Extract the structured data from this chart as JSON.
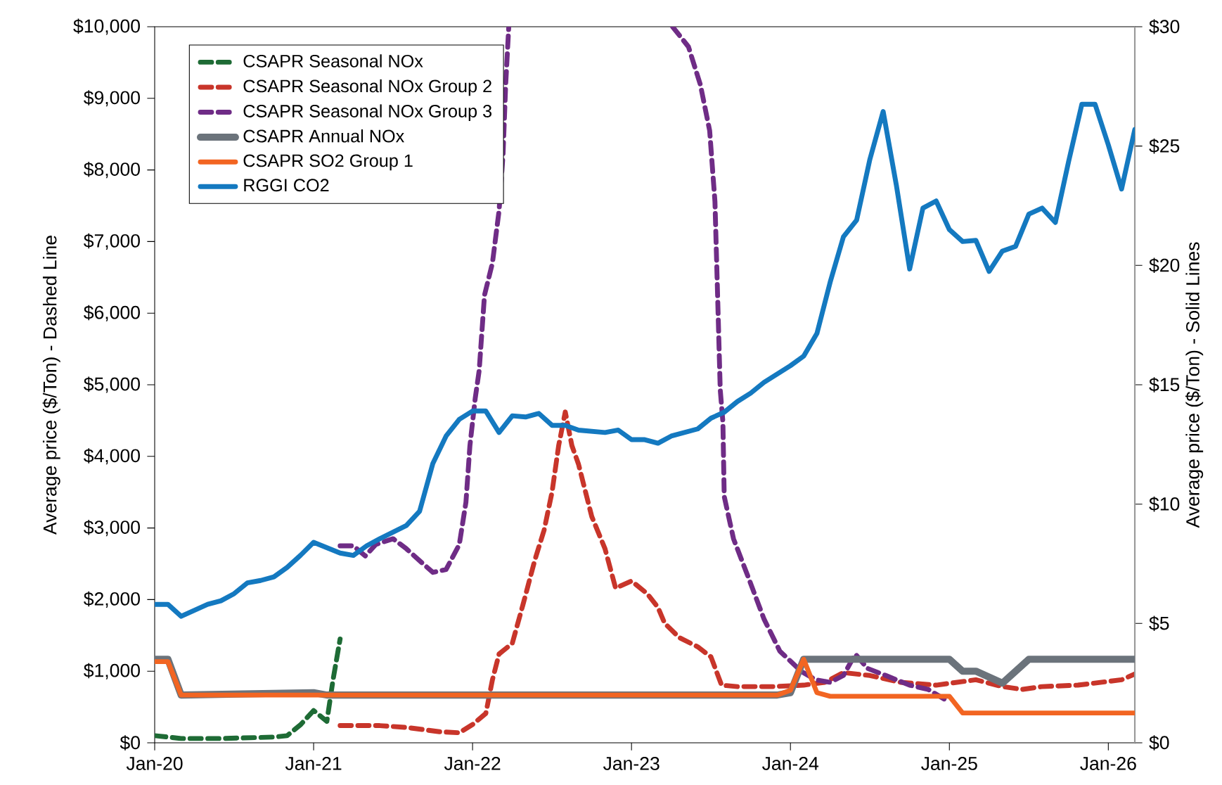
{
  "chart_data": {
    "type": "line",
    "ylabel": "Average price ($/Ton) - Dashed Line",
    "y2label": "Average price ($/Ton) - Solid Lines",
    "xlim": [
      "2020-01",
      "2026-03"
    ],
    "xticks": [
      {
        "value": "2020-01",
        "label": "Jan-20"
      },
      {
        "value": "2021-01",
        "label": "Jan-21"
      },
      {
        "value": "2022-01",
        "label": "Jan-22"
      },
      {
        "value": "2023-01",
        "label": "Jan-23"
      },
      {
        "value": "2024-01",
        "label": "Jan-24"
      },
      {
        "value": "2025-01",
        "label": "Jan-25"
      },
      {
        "value": "2026-01",
        "label": "Jan-26"
      }
    ],
    "ylim": [
      0,
      10000
    ],
    "yticks": [
      {
        "value": 0,
        "label": "$0"
      },
      {
        "value": 1000,
        "label": "$1,000"
      },
      {
        "value": 2000,
        "label": "$2,000"
      },
      {
        "value": 3000,
        "label": "$3,000"
      },
      {
        "value": 4000,
        "label": "$4,000"
      },
      {
        "value": 5000,
        "label": "$5,000"
      },
      {
        "value": 6000,
        "label": "$6,000"
      },
      {
        "value": 7000,
        "label": "$7,000"
      },
      {
        "value": 8000,
        "label": "$8,000"
      },
      {
        "value": 9000,
        "label": "$9,000"
      },
      {
        "value": 10000,
        "label": "$10,000"
      }
    ],
    "y2lim": [
      0,
      30
    ],
    "y2ticks": [
      {
        "value": 0,
        "label": "$0"
      },
      {
        "value": 5,
        "label": "$5"
      },
      {
        "value": 10,
        "label": "$10"
      },
      {
        "value": 15,
        "label": "$15"
      },
      {
        "value": 20,
        "label": "$20"
      },
      {
        "value": 25,
        "label": "$25"
      },
      {
        "value": 30,
        "label": "$30"
      }
    ],
    "legend": "top left",
    "series": [
      {
        "name": "CSAPR Seasonal NOx",
        "color": "#1e6b35",
        "line_style": "dashed",
        "x": [
          "2020-01",
          "2020-03",
          "2020-06",
          "2020-10",
          "2020-11",
          "2020-12",
          "2021-01",
          "2021-02",
          "2021-02-15",
          "2021-03"
        ],
        "values": [
          100,
          60,
          60,
          80,
          100,
          250,
          450,
          300,
          880,
          1450
        ]
      },
      {
        "name": "CSAPR Seasonal NOx Group 2",
        "color": "#c8352a",
        "line_style": "dashed",
        "x": [
          "2021-03",
          "2021-06",
          "2021-08",
          "2021-10-16",
          "2021-12",
          "2022-01",
          "2022-02",
          "2022-02-16",
          "2022-03",
          "2022-04",
          "2022-04-25",
          "2022-05-22",
          "2022-06-13",
          "2022-07",
          "2022-07-16",
          "2022-08",
          "2022-08-16",
          "2022-09",
          "2022-10",
          "2022-11",
          "2022-11-25",
          "2023-01",
          "2023-02-07",
          "2023-03",
          "2023-03-16",
          "2023-04-19",
          "2023-06",
          "2023-07",
          "2023-07-25",
          "2023-09",
          "2023-11-22",
          "2024-02",
          "2024-03-19",
          "2024-05",
          "2024-07",
          "2024-09-10",
          "2024-12",
          "2025-03",
          "2025-05",
          "2025-06-16",
          "2025-08",
          "2025-10-22",
          "2026-02",
          "2026-03"
        ],
        "values": [
          240,
          240,
          215,
          155,
          140,
          255,
          410,
          880,
          1240,
          1390,
          1925,
          2550,
          2970,
          3500,
          4150,
          4620,
          4150,
          3890,
          3160,
          2710,
          2160,
          2260,
          2080,
          1890,
          1670,
          1470,
          1340,
          1200,
          805,
          785,
          785,
          805,
          845,
          980,
          940,
          845,
          805,
          880,
          785,
          745,
          785,
          805,
          880,
          960
        ]
      },
      {
        "name": "CSAPR Seasonal NOx Group 3",
        "color": "#6f2c86",
        "line_style": "dashed",
        "x": [
          "2021-03",
          "2021-04",
          "2021-04-28",
          "2021-05-22",
          "2021-07",
          "2021-08",
          "2021-09-07",
          "2021-10",
          "2021-11",
          "2021-12",
          "2021-12-16",
          "2021-12-25",
          "2022-01-07",
          "2022-01-16",
          "2022-01-28",
          "2022-02-16",
          "2022-03",
          "2022-03-10",
          "2022-03-16",
          "2022-03-23",
          "2022-09",
          "2023-04-04",
          "2023-05-10",
          "2023-06-07",
          "2023-06-28",
          "2023-07-10",
          "2023-07-16",
          "2023-07-22",
          "2023-07-28",
          "2023-08",
          "2023-08-22",
          "2023-09-25",
          "2023-11",
          "2023-12-07",
          "2024-01-25",
          "2024-02-28",
          "2024-04",
          "2024-05",
          "2024-05-28",
          "2024-06-25",
          "2024-08-07",
          "2024-10",
          "2024-11-13",
          "2024-12-25"
        ],
        "values": [
          2750,
          2750,
          2610,
          2770,
          2850,
          2710,
          2510,
          2380,
          2420,
          2770,
          3360,
          4150,
          4810,
          5200,
          6250,
          6700,
          7430,
          8210,
          9190,
          10000,
          null,
          10000,
          9720,
          9190,
          8550,
          7560,
          6250,
          4930,
          4480,
          3440,
          2850,
          2320,
          1730,
          1280,
          1000,
          880,
          845,
          940,
          1240,
          1040,
          940,
          805,
          745,
          590
        ]
      },
      {
        "name": "CSAPR Annual NOx",
        "color": "#6b737b",
        "line_style": "solid",
        "axis": "y2",
        "x": [
          "2020-01",
          "2020-02",
          "2020-03",
          "2021-01",
          "2021-02",
          "2023-12",
          "2024-01",
          "2024-02",
          "2025-01",
          "2025-02",
          "2025-03",
          "2025-05",
          "2025-07",
          "2026-03"
        ],
        "values": [
          3.5,
          3.5,
          2.0,
          2.1,
          2.0,
          2.0,
          2.1,
          3.5,
          3.5,
          3.0,
          3.0,
          2.5,
          3.5,
          3.5
        ]
      },
      {
        "name": "CSAPR SO2 Group 1",
        "color": "#f26522",
        "line_style": "solid",
        "axis": "y2",
        "x": [
          "2020-01",
          "2020-02",
          "2020-03",
          "2023-12",
          "2024-01",
          "2024-02",
          "2024-03",
          "2024-04",
          "2025-01",
          "2025-02",
          "2026-03"
        ],
        "values": [
          3.4,
          3.4,
          2.0,
          2.0,
          2.2,
          3.5,
          2.1,
          1.95,
          1.95,
          1.25,
          1.25
        ]
      },
      {
        "name": "RGGI CO2",
        "color": "#1479c0",
        "line_style": "solid",
        "axis": "y2",
        "x": [
          "2020-01",
          "2020-02",
          "2020-03",
          "2020-05",
          "2020-06",
          "2020-07",
          "2020-08",
          "2020-09",
          "2020-10",
          "2020-11",
          "2020-12",
          "2021-01",
          "2021-03",
          "2021-04",
          "2021-05",
          "2021-06",
          "2021-08",
          "2021-09",
          "2021-10",
          "2021-11",
          "2021-12",
          "2022-01",
          "2022-02",
          "2022-03",
          "2022-04",
          "2022-05",
          "2022-06",
          "2022-07",
          "2022-08",
          "2022-09",
          "2022-11",
          "2022-12",
          "2023-01",
          "2023-02",
          "2023-03",
          "2023-04",
          "2023-06",
          "2023-07",
          "2023-08",
          "2023-09",
          "2023-10",
          "2023-11",
          "2024-01",
          "2024-02",
          "2024-03",
          "2024-04",
          "2024-05",
          "2024-06",
          "2024-07",
          "2024-08",
          "2024-09",
          "2024-10",
          "2024-11",
          "2024-12",
          "2025-01",
          "2025-02",
          "2025-03",
          "2025-04",
          "2025-05",
          "2025-06",
          "2025-07",
          "2025-08",
          "2025-09",
          "2025-10",
          "2025-11",
          "2025-12",
          "2026-01",
          "2026-02",
          "2026-03"
        ],
        "values": [
          5.8,
          5.8,
          5.3,
          5.8,
          5.95,
          6.25,
          6.7,
          6.8,
          6.95,
          7.35,
          7.85,
          8.4,
          7.95,
          7.85,
          8.25,
          8.55,
          9.1,
          9.7,
          11.7,
          12.85,
          13.55,
          13.9,
          13.9,
          13.0,
          13.7,
          13.65,
          13.8,
          13.3,
          13.3,
          13.1,
          13.0,
          13.1,
          12.7,
          12.7,
          12.55,
          12.85,
          13.15,
          13.6,
          13.85,
          14.3,
          14.65,
          15.1,
          15.8,
          16.2,
          17.15,
          19.3,
          21.2,
          21.9,
          24.45,
          26.45,
          23.35,
          19.85,
          22.4,
          22.7,
          21.5,
          21.0,
          21.05,
          19.75,
          20.6,
          20.8,
          22.15,
          22.4,
          21.8,
          24.35,
          26.75,
          26.75,
          25.05,
          23.2,
          25.7
        ]
      }
    ]
  }
}
